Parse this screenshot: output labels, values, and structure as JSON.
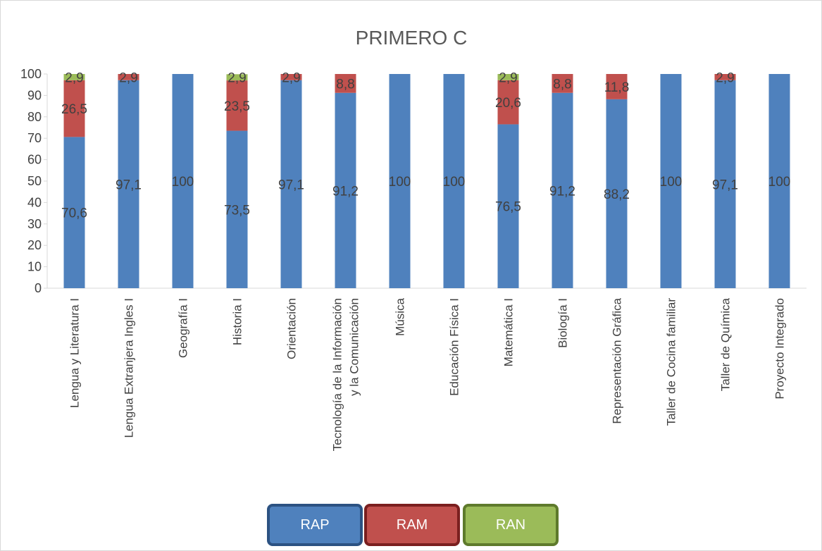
{
  "chart_data": {
    "type": "bar",
    "stacked": true,
    "title": "PRIMERO C",
    "xlabel": "",
    "ylabel": "",
    "ylim": [
      0,
      100
    ],
    "yticks": [
      0,
      10,
      20,
      30,
      40,
      50,
      60,
      70,
      80,
      90,
      100
    ],
    "grid": false,
    "legend_position": "bottom",
    "categories": [
      [
        "Lengua y Literatura I"
      ],
      [
        "Lengua Extranjera Ingles I"
      ],
      [
        "Geografía I"
      ],
      [
        "Historia I"
      ],
      [
        "Orientación"
      ],
      [
        "Tecnología de la Información",
        "y la Comunicación"
      ],
      [
        "Música"
      ],
      [
        "Educación Física I"
      ],
      [
        "Matemática I"
      ],
      [
        "Biología I"
      ],
      [
        "Representación Gráfica"
      ],
      [
        "Taller de Cocina familiar"
      ],
      [
        "Taller de Química"
      ],
      [
        "Proyecto Integrado"
      ]
    ],
    "series": [
      {
        "name": "RAP",
        "color": "#4f81bd",
        "border": "#2c5282",
        "values": [
          70.6,
          97.1,
          100,
          73.5,
          97.1,
          91.2,
          100,
          100,
          76.5,
          91.2,
          88.2,
          100,
          97.1,
          100
        ],
        "labels": [
          "70,6",
          "97,1",
          "100",
          "73,5",
          "97,1",
          "91,2",
          "100",
          "100",
          "76,5",
          "91,2",
          "88,2",
          "100",
          "97,1",
          "100"
        ]
      },
      {
        "name": "RAM",
        "color": "#c0504d",
        "border": "#7a1f1f",
        "values": [
          26.5,
          2.9,
          0,
          23.5,
          2.9,
          8.8,
          0,
          0,
          20.6,
          8.8,
          11.8,
          0,
          2.9,
          0
        ],
        "labels": [
          "26,5",
          "2,9",
          "",
          "23,5",
          "2,9",
          "8,8",
          "",
          "",
          "20,6",
          "8,8",
          "11,8",
          "",
          "2,9",
          ""
        ]
      },
      {
        "name": "RAN",
        "color": "#9bbb59",
        "border": "#5e7a2c",
        "values": [
          2.9,
          0,
          0,
          2.9,
          0,
          0,
          0,
          0,
          2.9,
          0,
          0,
          0,
          0,
          0
        ],
        "labels": [
          "2,9",
          "",
          "",
          "2,9",
          "",
          "",
          "",
          "",
          "2,9",
          "",
          "",
          "",
          "",
          ""
        ]
      }
    ]
  }
}
